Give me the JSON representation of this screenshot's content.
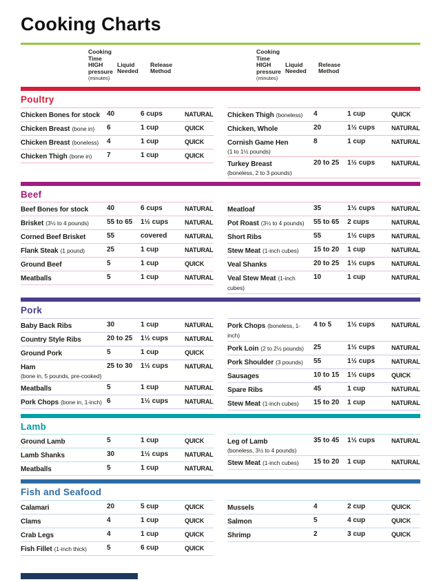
{
  "page": {
    "title": "Cooking Charts"
  },
  "colors": {
    "title_rule": "#92c83e",
    "footer_bar": "#1d3a5e",
    "text": "#1d1d1b"
  },
  "column_headers": {
    "time_lines": [
      "Cooking",
      "Time",
      "HIGH",
      "pressure"
    ],
    "time_unit": "(minutes)",
    "liquid_lines": [
      "Liquid",
      "Needed"
    ],
    "release_lines": [
      "Release",
      "Method"
    ]
  },
  "sections": [
    {
      "id": "poultry",
      "name": "Poultry",
      "color": "#d2203c",
      "rule": "#f2b6c1",
      "left": [
        {
          "item": "Chicken Bones for stock",
          "time": "40",
          "liquid": "6 cups",
          "release": "NATURAL"
        },
        {
          "item": "Chicken Breast",
          "note": "(bone in)",
          "time": "6",
          "liquid": "1 cup",
          "release": "QUICK"
        },
        {
          "item": "Chicken Breast",
          "note": "(boneless)",
          "time": "4",
          "liquid": "1 cup",
          "release": "QUICK"
        },
        {
          "item": "Chicken Thigh",
          "note": "(bone in)",
          "time": "7",
          "liquid": "1 cup",
          "release": "QUICK"
        }
      ],
      "right": [
        {
          "item": "Chicken Thigh",
          "note": "(boneless)",
          "time": "4",
          "liquid": "1 cup",
          "release": "QUICK"
        },
        {
          "item": "Chicken, Whole",
          "time": "20",
          "liquid": "1½ cups",
          "release": "NATURAL"
        },
        {
          "item": "Cornish Game Hen",
          "note2": "(1 to 1½ pounds)",
          "time": "8",
          "liquid": "1 cup",
          "release": "NATURAL"
        },
        {
          "item": "Turkey Breast",
          "note2": "(boneless, 2 to 3 pounds)",
          "time": "20 to 25",
          "liquid": "1½ cups",
          "release": "NATURAL"
        }
      ]
    },
    {
      "id": "beef",
      "name": "Beef",
      "color": "#a21c80",
      "rule": "#e8c0dc",
      "left": [
        {
          "item": "Beef Bones for stock",
          "time": "40",
          "liquid": "6 cups",
          "release": "NATURAL"
        },
        {
          "item": "Brisket",
          "note": "(3½ to 4 pounds)",
          "time": "55 to 65",
          "liquid": "1½ cups",
          "release": "NATURAL"
        },
        {
          "item": "Corned Beef Brisket",
          "time": "55",
          "liquid": "covered",
          "release": "NATURAL"
        },
        {
          "item": "Flank Steak",
          "note": "(1 pound)",
          "time": "25",
          "liquid": "1 cup",
          "release": "NATURAL"
        },
        {
          "item": "Ground Beef",
          "time": "5",
          "liquid": "1 cup",
          "release": "QUICK"
        },
        {
          "item": "Meatballs",
          "time": "5",
          "liquid": "1 cup",
          "release": "NATURAL"
        }
      ],
      "right": [
        {
          "item": "Meatloaf",
          "time": "35",
          "liquid": "1½ cups",
          "release": "NATURAL"
        },
        {
          "item": "Pot Roast",
          "note": "(3½ to 4 pounds)",
          "time": "55 to 65",
          "liquid": "2 cups",
          "release": "NATURAL"
        },
        {
          "item": "Short Ribs",
          "time": "55",
          "liquid": "1½ cups",
          "release": "NATURAL"
        },
        {
          "item": "Stew Meat",
          "note": "(1-inch cubes)",
          "time": "15 to 20",
          "liquid": "1 cup",
          "release": "NATURAL"
        },
        {
          "item": "Veal Shanks",
          "time": "20 to 25",
          "liquid": "1½ cups",
          "release": "NATURAL"
        },
        {
          "item": "Veal Stew Meat",
          "note": "(1-inch cubes)",
          "time": "10",
          "liquid": "1 cup",
          "release": "NATURAL"
        }
      ]
    },
    {
      "id": "pork",
      "name": "Pork",
      "color": "#493e8f",
      "rule": "#ccc7e6",
      "left": [
        {
          "item": "Baby Back Ribs",
          "time": "30",
          "liquid": "1 cup",
          "release": "NATURAL"
        },
        {
          "item": "Country Style Ribs",
          "time": "20 to 25",
          "liquid": "1½ cups",
          "release": "NATURAL"
        },
        {
          "item": "Ground Pork",
          "time": "5",
          "liquid": "1 cup",
          "release": "QUICK"
        },
        {
          "item": "Ham",
          "note2": "(bone in, 5 pounds, pre-cooked)",
          "time": "25 to 30",
          "liquid": "1½ cups",
          "release": "NATURAL"
        },
        {
          "item": "Meatballs",
          "time": "5",
          "liquid": "1 cup",
          "release": "NATURAL"
        },
        {
          "item": "Pork Chops",
          "note": "(bone in, 1-inch)",
          "time": "6",
          "liquid": "1½ cups",
          "release": "NATURAL"
        }
      ],
      "right": [
        {
          "item": "Pork Chops",
          "note": "(boneless, 1-inch)",
          "time": "4 to 5",
          "liquid": "1½ cups",
          "release": "NATURAL"
        },
        {
          "item": "Pork Loin",
          "note": "(2 to 2½ pounds)",
          "time": "25",
          "liquid": "1½ cups",
          "release": "NATURAL"
        },
        {
          "item": "Pork Shoulder",
          "note": "(3 pounds)",
          "time": "55",
          "liquid": "1½ cups",
          "release": "NATURAL"
        },
        {
          "item": "Sausages",
          "time": "10 to 15",
          "liquid": "1½ cups",
          "release": "QUICK"
        },
        {
          "item": "Spare Ribs",
          "time": "45",
          "liquid": "1 cup",
          "release": "NATURAL"
        },
        {
          "item": "Stew Meat",
          "note": "(1-inch cubes)",
          "time": "15 to 20",
          "liquid": "1 cup",
          "release": "NATURAL"
        }
      ]
    },
    {
      "id": "lamb",
      "name": "Lamb",
      "color": "#00a1a7",
      "rule": "#b5e1e3",
      "left": [
        {
          "item": "Ground Lamb",
          "time": "5",
          "liquid": "1 cup",
          "release": "QUICK"
        },
        {
          "item": "Lamb Shanks",
          "time": "30",
          "liquid": "1½ cups",
          "release": "NATURAL"
        },
        {
          "item": "Meatballs",
          "time": "5",
          "liquid": "1 cup",
          "release": "NATURAL"
        }
      ],
      "right": [
        {
          "item": "Leg of Lamb",
          "note2": "(boneless, 3½ to 4 pounds)",
          "time": "35 to 45",
          "liquid": "1½ cups",
          "release": "NATURAL"
        },
        {
          "item": "Stew Meat",
          "note": "(1-inch cubes)",
          "time": "15 to 20",
          "liquid": "1 cup",
          "release": "NATURAL"
        }
      ]
    },
    {
      "id": "fish",
      "name": "Fish and Seafood",
      "color": "#2d6ba4",
      "rule": "#c2d8ec",
      "left": [
        {
          "item": "Calamari",
          "time": "20",
          "liquid": "5 cup",
          "release": "QUICK"
        },
        {
          "item": "Clams",
          "time": "4",
          "liquid": "1 cup",
          "release": "QUICK"
        },
        {
          "item": "Crab Legs",
          "time": "4",
          "liquid": "1 cup",
          "release": "QUICK"
        },
        {
          "item": "Fish Fillet",
          "note": "(1-inch thick)",
          "time": "5",
          "liquid": "6 cup",
          "release": "QUICK"
        }
      ],
      "right": [
        {
          "item": "Mussels",
          "time": "4",
          "liquid": "2 cup",
          "release": "QUICK"
        },
        {
          "item": "Salmon",
          "time": "5",
          "liquid": "4 cup",
          "release": "QUICK"
        },
        {
          "item": "Shrimp",
          "time": "2",
          "liquid": "3 cup",
          "release": "QUICK"
        }
      ]
    }
  ]
}
